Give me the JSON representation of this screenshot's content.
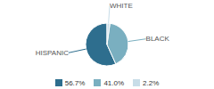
{
  "chart_data": {
    "type": "pie",
    "categories": [
      "HISPANIC",
      "BLACK",
      "WHITE"
    ],
    "values": [
      56.7,
      41.0,
      2.2
    ],
    "value_labels": [
      "56.7%",
      "41.0%",
      "2.2%"
    ],
    "colors": [
      "#2e6e8e",
      "#7aafc0",
      "#c8dde8"
    ],
    "legend": "bottom"
  }
}
